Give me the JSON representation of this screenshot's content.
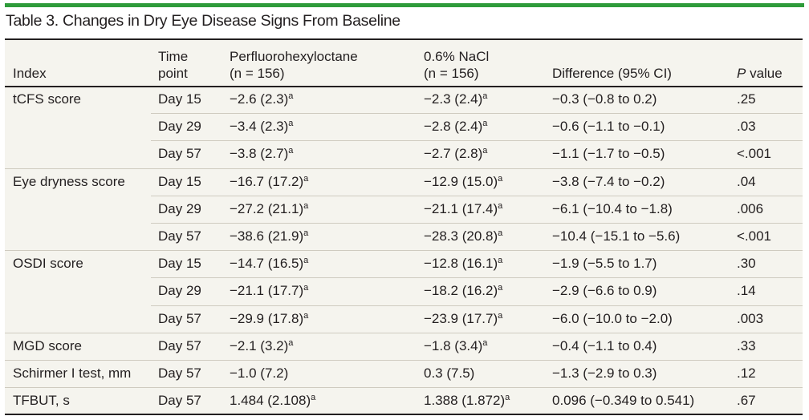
{
  "title": "Table 3. Changes in Dry Eye Disease Signs From Baseline",
  "accent_color": "#2e9b3a",
  "headers": {
    "index": "Index",
    "time_point_1": "Time",
    "time_point_2": "point",
    "perf_1": "Perfluorohexyloctane",
    "perf_2": "(n = 156)",
    "nacl_1": "0.6% NaCl",
    "nacl_2": "(n = 156)",
    "difference": "Difference (95% CI)",
    "p_italic": "P",
    "p_rest": " value"
  },
  "footnote_mark": "a",
  "rows": [
    {
      "index": "tCFS score",
      "time": "Day 15",
      "perf": "−2.6 (2.3)",
      "perf_a": true,
      "nacl": "−2.3 (2.4)",
      "nacl_a": true,
      "diff": "−0.3 (−0.8 to 0.2)",
      "p": ".25"
    },
    {
      "index": "",
      "time": "Day 29",
      "perf": "−3.4 (2.3)",
      "perf_a": true,
      "nacl": "−2.8 (2.4)",
      "nacl_a": true,
      "diff": "−0.6 (−1.1 to −0.1)",
      "p": ".03"
    },
    {
      "index": "",
      "time": "Day 57",
      "perf": "−3.8 (2.7)",
      "perf_a": true,
      "nacl": "−2.7 (2.8)",
      "nacl_a": true,
      "diff": "−1.1 (−1.7 to −0.5)",
      "p": "<.001"
    },
    {
      "index": "Eye dryness score",
      "time": "Day 15",
      "perf": "−16.7 (17.2)",
      "perf_a": true,
      "nacl": "−12.9 (15.0)",
      "nacl_a": true,
      "diff": "−3.8 (−7.4 to −0.2)",
      "p": ".04"
    },
    {
      "index": "",
      "time": "Day 29",
      "perf": "−27.2 (21.1)",
      "perf_a": true,
      "nacl": "−21.1 (17.4)",
      "nacl_a": true,
      "diff": "−6.1 (−10.4 to −1.8)",
      "p": ".006"
    },
    {
      "index": "",
      "time": "Day 57",
      "perf": "−38.6 (21.9)",
      "perf_a": true,
      "nacl": "−28.3 (20.8)",
      "nacl_a": true,
      "diff": "−10.4 (−15.1 to −5.6)",
      "p": "<.001"
    },
    {
      "index": "OSDI score",
      "time": "Day 15",
      "perf": "−14.7 (16.5)",
      "perf_a": true,
      "nacl": "−12.8 (16.1)",
      "nacl_a": true,
      "diff": "−1.9 (−5.5 to 1.7)",
      "p": ".30"
    },
    {
      "index": "",
      "time": "Day 29",
      "perf": "−21.1 (17.7)",
      "perf_a": true,
      "nacl": "−18.2 (16.2)",
      "nacl_a": true,
      "diff": "−2.9 (−6.6 to 0.9)",
      "p": ".14"
    },
    {
      "index": "",
      "time": "Day 57",
      "perf": "−29.9 (17.8)",
      "perf_a": true,
      "nacl": "−23.9 (17.7)",
      "nacl_a": true,
      "diff": "−6.0 (−10.0 to −2.0)",
      "p": ".003"
    },
    {
      "index": "MGD score",
      "time": "Day 57",
      "perf": "−2.1 (3.2)",
      "perf_a": true,
      "nacl": "−1.8 (3.4)",
      "nacl_a": true,
      "diff": "−0.4 (−1.1 to 0.4)",
      "p": ".33"
    },
    {
      "index": "Schirmer I test, mm",
      "time": "Day 57",
      "perf": "−1.0 (7.2)",
      "perf_a": false,
      "nacl": "0.3 (7.5)",
      "nacl_a": false,
      "diff": "−1.3 (−2.9 to 0.3)",
      "p": ".12"
    },
    {
      "index": "TFBUT, s",
      "time": "Day 57",
      "perf": "1.484 (2.108)",
      "perf_a": true,
      "nacl": "1.388 (1.872)",
      "nacl_a": true,
      "diff": "0.096 (−0.349 to 0.541)",
      "p": ".67"
    }
  ]
}
